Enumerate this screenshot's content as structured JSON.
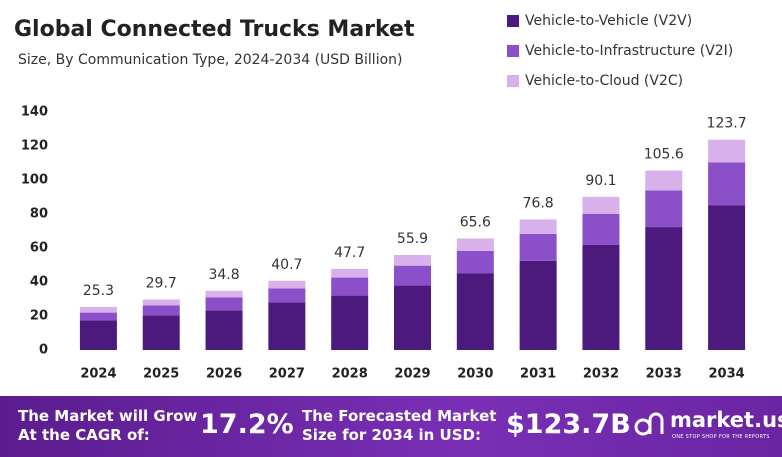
{
  "chart_data": {
    "type": "bar",
    "stacked": true,
    "title": "Global Connected Trucks Market",
    "subtitle": "Size, By Communication Type, 2024-2034 (USD Billion)",
    "categories": [
      "2024",
      "2025",
      "2026",
      "2027",
      "2028",
      "2029",
      "2030",
      "2031",
      "2032",
      "2033",
      "2034"
    ],
    "series": [
      {
        "name": "Vehicle-to-Vehicle (V2V)",
        "color": "#4b1a7c",
        "values": [
          17.5,
          20.4,
          23.3,
          28,
          32,
          37.9,
          45,
          52.5,
          61.8,
          72.3,
          85.2
        ]
      },
      {
        "name": "Vehicle-to-Infrastructure (V2I)",
        "color": "#8b4fca",
        "values": [
          4.5,
          5.8,
          7.6,
          8.2,
          10.6,
          11.7,
          13.3,
          15.8,
          18.2,
          21.6,
          25.1
        ]
      },
      {
        "name": "Vehicle-to-Cloud (V2C)",
        "color": "#d8b0ea",
        "values": [
          3.3,
          3.5,
          3.9,
          4.5,
          5.1,
          6.3,
          7.3,
          8.5,
          10.1,
          11.7,
          13.4
        ]
      }
    ],
    "totals": [
      25.3,
      29.7,
      34.8,
      40.7,
      47.7,
      55.9,
      65.6,
      76.8,
      90.1,
      105.6,
      123.7
    ],
    "ylim": [
      0,
      140
    ],
    "yticks": [
      0,
      20,
      40,
      60,
      80,
      100,
      120,
      140
    ],
    "grid": false,
    "legend": "top-right"
  },
  "footer": {
    "cagr_text_1": "The Market will Grow",
    "cagr_text_2": "At the CAGR of:",
    "cagr": "17.2%",
    "forecast_text_1": "The Forecasted Market",
    "forecast_text_2": "Size for 2034 in USD:",
    "forecast": "$123.7B",
    "brand": "market.us",
    "tagline": "ONE STOP SHOP FOR THE REPORTS"
  }
}
